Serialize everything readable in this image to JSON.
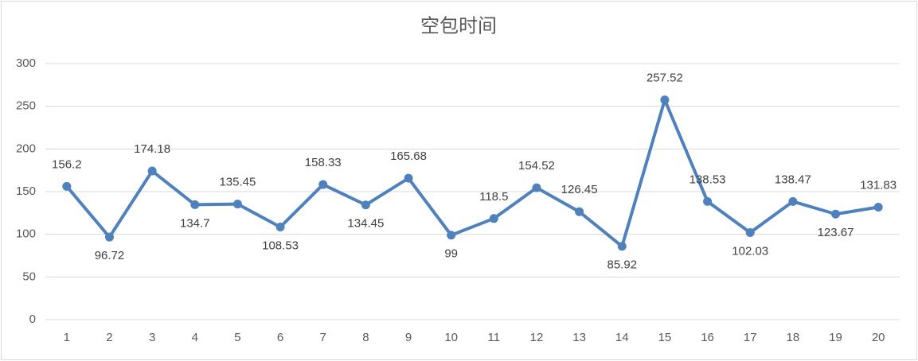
{
  "chart_data": {
    "type": "line",
    "title": "空包时间",
    "categories": [
      "1",
      "2",
      "3",
      "4",
      "5",
      "6",
      "7",
      "8",
      "9",
      "10",
      "11",
      "12",
      "13",
      "14",
      "15",
      "16",
      "17",
      "18",
      "19",
      "20"
    ],
    "values": [
      156.2,
      96.72,
      174.18,
      134.7,
      135.45,
      108.53,
      158.33,
      134.45,
      165.68,
      99,
      118.5,
      154.52,
      126.45,
      85.92,
      257.52,
      138.53,
      102.03,
      138.47,
      123.67,
      131.83
    ],
    "color": "#4f81bd",
    "ylim": [
      0,
      300
    ],
    "yticks": [
      0,
      50,
      100,
      150,
      200,
      250,
      300
    ],
    "grid": true
  }
}
